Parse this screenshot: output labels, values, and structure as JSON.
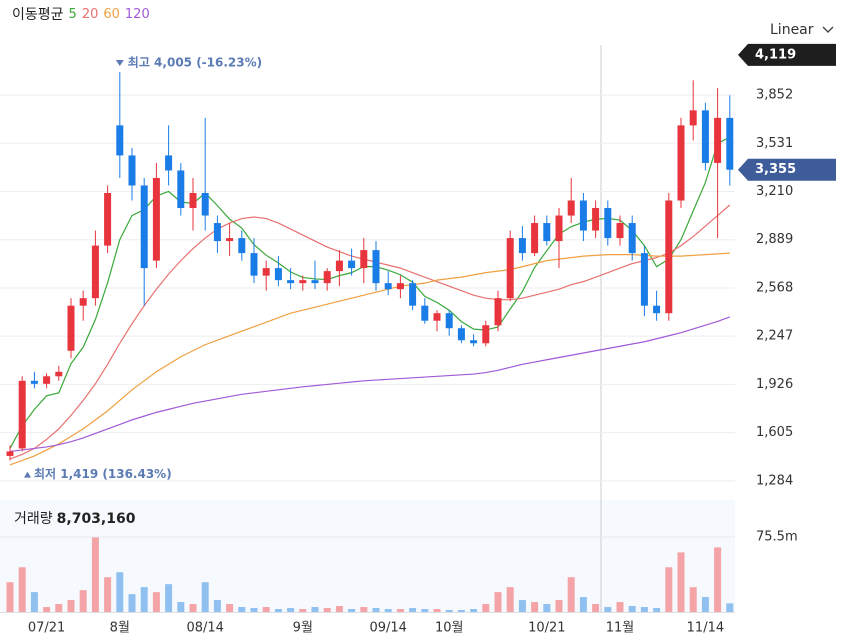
{
  "chart_data": {
    "type": "candlestick",
    "title": "이동평균",
    "scale_label": "Linear",
    "categories": [
      null,
      null,
      null,
      "07/21",
      null,
      null,
      null,
      null,
      null,
      "8월",
      null,
      null,
      null,
      null,
      null,
      null,
      "08/14",
      null,
      null,
      null,
      null,
      null,
      null,
      null,
      "9월",
      null,
      null,
      null,
      null,
      null,
      null,
      "09/14",
      null,
      null,
      null,
      null,
      "10월",
      null,
      null,
      null,
      null,
      null,
      null,
      null,
      "10/21",
      null,
      null,
      null,
      null,
      null,
      "11월",
      null,
      null,
      null,
      null,
      null,
      null,
      "11/14",
      null,
      null
    ],
    "ohlc": {
      "open": [
        1450,
        1500,
        1950,
        1930,
        1980,
        2150,
        2450,
        2500,
        2850,
        3650,
        3450,
        3250,
        2750,
        3450,
        3350,
        3100,
        3200,
        3000,
        2880,
        2900,
        2800,
        2650,
        2700,
        2620,
        2600,
        2620,
        2600,
        2680,
        2750,
        2700,
        2820,
        2600,
        2560,
        2600,
        2450,
        2350,
        2400,
        2300,
        2220,
        2200,
        2320,
        2500,
        2900,
        2800,
        3000,
        2880,
        3050,
        3150,
        2950,
        3100,
        2900,
        3000,
        2800,
        2450,
        2400,
        3150,
        3650,
        3750,
        3400,
        3700
      ],
      "high": [
        1520,
        1980,
        2010,
        2000,
        2050,
        2500,
        2550,
        2950,
        3250,
        4005,
        3500,
        3300,
        3400,
        3650,
        3400,
        3300,
        3700,
        3050,
        3000,
        2950,
        2900,
        2750,
        2780,
        2700,
        2650,
        2750,
        2700,
        2820,
        2830,
        2900,
        2880,
        2680,
        2650,
        2620,
        2500,
        2420,
        2420,
        2320,
        2260,
        2350,
        2550,
        2950,
        2980,
        3050,
        3050,
        3100,
        3300,
        3200,
        3150,
        3150,
        3050,
        3050,
        2850,
        2550,
        3200,
        3700,
        3950,
        3800,
        3900,
        3850
      ],
      "low": [
        1419,
        1480,
        1900,
        1900,
        1950,
        2100,
        2350,
        2450,
        2800,
        3300,
        3150,
        2450,
        2700,
        3250,
        3050,
        2950,
        2950,
        2800,
        2780,
        2750,
        2600,
        2550,
        2580,
        2560,
        2550,
        2560,
        2550,
        2580,
        2650,
        2600,
        2550,
        2520,
        2500,
        2420,
        2330,
        2280,
        2250,
        2200,
        2180,
        2180,
        2280,
        2480,
        2750,
        2780,
        2850,
        2700,
        3000,
        2880,
        2900,
        2850,
        2850,
        2750,
        2380,
        2350,
        2350,
        3100,
        3550,
        3350,
        2900,
        3250
      ],
      "close": [
        1480,
        1950,
        1930,
        1980,
        2010,
        2450,
        2500,
        2850,
        3200,
        3450,
        3250,
        2700,
        3300,
        3350,
        3100,
        3200,
        3050,
        2880,
        2900,
        2800,
        2650,
        2700,
        2620,
        2600,
        2620,
        2600,
        2680,
        2750,
        2700,
        2820,
        2600,
        2560,
        2600,
        2450,
        2350,
        2400,
        2300,
        2220,
        2200,
        2320,
        2500,
        2900,
        2800,
        3000,
        2880,
        3050,
        3150,
        2950,
        3100,
        2900,
        3000,
        2800,
        2450,
        2400,
        3150,
        3650,
        3750,
        3400,
        3700,
        3355
      ]
    },
    "up_color": "#e8343c",
    "down_color": "#1a7ce6",
    "moving_averages": [
      {
        "name": "5",
        "color": "#3aa83a",
        "values": [
          1500,
          1650,
          1760,
          1850,
          1870,
          2064,
          2174,
          2358,
          2602,
          2890,
          3050,
          3090,
          3180,
          3210,
          3140,
          3130,
          3200,
          3116,
          3026,
          2966,
          2856,
          2786,
          2734,
          2674,
          2638,
          2628,
          2624,
          2650,
          2670,
          2710,
          2710,
          2686,
          2656,
          2606,
          2512,
          2472,
          2420,
          2344,
          2294,
          2288,
          2308,
          2428,
          2544,
          2704,
          2816,
          2926,
          2976,
          3006,
          3026,
          3030,
          3020,
          2950,
          2850,
          2710,
          2760,
          2890,
          3080,
          3270,
          3530,
          3571
        ]
      },
      {
        "name": "20",
        "color": "#e8706e",
        "values": [
          1430,
          1460,
          1500,
          1560,
          1630,
          1720,
          1820,
          1930,
          2060,
          2200,
          2330,
          2450,
          2560,
          2660,
          2750,
          2830,
          2900,
          2960,
          3000,
          3030,
          3040,
          3030,
          3000,
          2960,
          2920,
          2880,
          2840,
          2810,
          2780,
          2760,
          2740,
          2720,
          2700,
          2670,
          2640,
          2610,
          2580,
          2550,
          2520,
          2500,
          2490,
          2490,
          2500,
          2520,
          2540,
          2560,
          2590,
          2610,
          2640,
          2670,
          2700,
          2730,
          2750,
          2770,
          2800,
          2850,
          2910,
          2980,
          3050,
          3120
        ]
      },
      {
        "name": "60",
        "color": "#f0a040",
        "values": [
          1390,
          1420,
          1450,
          1490,
          1530,
          1580,
          1630,
          1690,
          1750,
          1820,
          1890,
          1950,
          2010,
          2060,
          2110,
          2150,
          2190,
          2220,
          2250,
          2280,
          2310,
          2340,
          2370,
          2400,
          2420,
          2440,
          2460,
          2480,
          2500,
          2520,
          2540,
          2560,
          2580,
          2590,
          2600,
          2620,
          2630,
          2640,
          2655,
          2670,
          2680,
          2690,
          2710,
          2730,
          2750,
          2760,
          2770,
          2780,
          2785,
          2790,
          2790,
          2790,
          2785,
          2780,
          2780,
          2780,
          2785,
          2790,
          2795,
          2800
        ]
      },
      {
        "name": "120",
        "color": "#a05ad8",
        "values": [
          1480,
          1490,
          1500,
          1510,
          1525,
          1545,
          1570,
          1600,
          1630,
          1660,
          1690,
          1715,
          1740,
          1760,
          1780,
          1800,
          1815,
          1830,
          1845,
          1860,
          1870,
          1880,
          1890,
          1900,
          1910,
          1918,
          1926,
          1934,
          1942,
          1950,
          1955,
          1960,
          1965,
          1970,
          1975,
          1980,
          1985,
          1990,
          1995,
          2005,
          2020,
          2040,
          2060,
          2075,
          2090,
          2105,
          2120,
          2135,
          2150,
          2165,
          2180,
          2195,
          2210,
          2230,
          2250,
          2270,
          2295,
          2320,
          2345,
          2375
        ]
      }
    ],
    "ylim": [
      1190,
      4185
    ],
    "yticks": [
      {
        "value": 1284,
        "label": "1,284"
      },
      {
        "value": 1605,
        "label": "1,605"
      },
      {
        "value": 1926,
        "label": "1,926"
      },
      {
        "value": 2247,
        "label": "2,247"
      },
      {
        "value": 2568,
        "label": "2,568"
      },
      {
        "value": 2889,
        "label": "2,889"
      },
      {
        "value": 3210,
        "label": "3,210"
      },
      {
        "value": 3531,
        "label": "3,531"
      },
      {
        "value": 3852,
        "label": "3,852"
      }
    ],
    "grid": true,
    "price_tags": [
      {
        "value": 4119,
        "label": "4,119",
        "color": "#1e1e1e"
      },
      {
        "value": 3355,
        "label": "3,355",
        "color": "#3e5c9a"
      }
    ],
    "annotations": [
      "최고 4,005 (-16.23%)",
      "최저 1,419 (136.43%)"
    ],
    "annotation_color": "#5b7bb5",
    "volume": {
      "title": "거래량",
      "value_label": "8,703,160",
      "values": [
        30000000,
        45000000,
        20000000,
        5000000,
        8000000,
        12000000,
        22000000,
        75000000,
        35000000,
        40000000,
        18000000,
        25000000,
        20000000,
        28000000,
        10000000,
        8000000,
        30000000,
        12000000,
        8000000,
        5000000,
        4000000,
        5000000,
        3000000,
        4000000,
        3000000,
        5000000,
        4000000,
        6000000,
        3000000,
        5000000,
        4000000,
        3000000,
        3000000,
        4000000,
        3000000,
        3000000,
        2000000,
        2000000,
        3000000,
        8000000,
        20000000,
        25000000,
        12000000,
        10000000,
        8000000,
        12000000,
        35000000,
        15000000,
        8000000,
        5000000,
        10000000,
        6000000,
        5000000,
        4000000,
        45000000,
        60000000,
        25000000,
        15000000,
        65000000,
        8703160
      ],
      "ylim": [
        0,
        112700000
      ],
      "yticks": [
        {
          "value": 75500000,
          "label": "75.5m"
        }
      ],
      "up_color": "#f4a3a6",
      "down_color": "#8fc0ef"
    }
  }
}
